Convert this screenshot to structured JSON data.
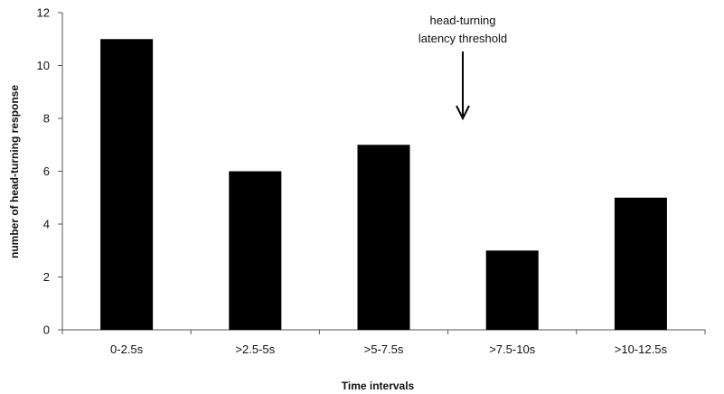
{
  "chart_data": {
    "type": "bar",
    "categories": [
      "0-2.5s",
      ">2.5-5s",
      ">5-7.5s",
      ">7.5-10s",
      ">10-12.5s"
    ],
    "values": [
      11,
      6,
      7,
      3,
      5
    ],
    "xlabel": "Time intervals",
    "ylabel": "number of head-turning response",
    "ylim": [
      0,
      12
    ],
    "yticks": [
      0,
      2,
      4,
      6,
      8,
      10,
      12
    ],
    "grid": false,
    "legend": "none",
    "bar_color": "#000000",
    "annotation": {
      "lines": [
        "head-turning",
        "latency threshold"
      ],
      "arrow": "down",
      "position_x": 7.5
    }
  }
}
